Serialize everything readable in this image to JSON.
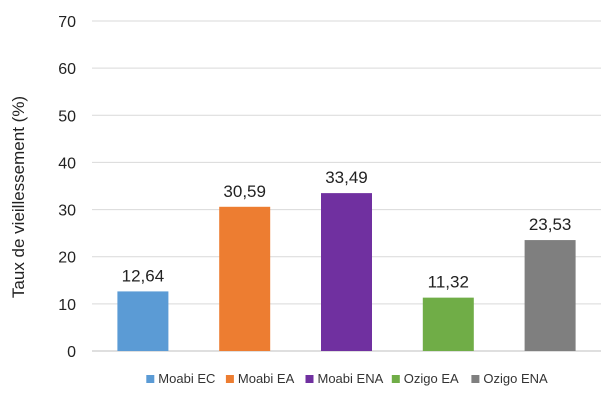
{
  "chart_data": {
    "type": "bar",
    "title": "",
    "xlabel": "",
    "ylabel": "Taux de vieillessement (%)",
    "ylim": [
      0,
      70
    ],
    "yticks": [
      0,
      10,
      20,
      30,
      40,
      50,
      60,
      70
    ],
    "grid": true,
    "legend_position": "bottom",
    "categories": [
      "Moabi EC",
      "Moabi EA",
      "Moabi ENA",
      "Ozigo EA",
      "Ozigo ENA"
    ],
    "values": [
      12.64,
      30.59,
      33.49,
      11.32,
      23.53
    ],
    "value_labels": [
      "12,64",
      "30,59",
      "33,49",
      "11,32",
      "23,53"
    ],
    "colors": [
      "#5B9BD5",
      "#ED7D31",
      "#7030A0",
      "#70AD47",
      "#7F7F7F"
    ],
    "gridline_color": "#d9d9d9",
    "axis_color": "#bfbfbf",
    "text_color": "#222222"
  }
}
